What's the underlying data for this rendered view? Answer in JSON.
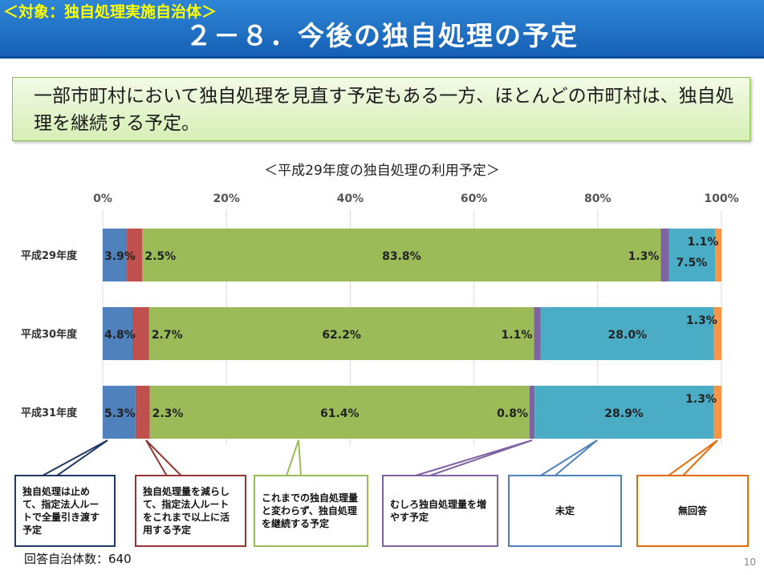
{
  "header": {
    "tag": "＜対象：独自処理実施自治体＞",
    "title": "２－８．今後の独自処理の予定"
  },
  "summary": "一部市町村において独自処理を見直す予定もある一方、ほとんどの市町村は、独自処理を継続する予定。",
  "footer": {
    "respondents": "回答自治体数：640",
    "page_number": "10"
  },
  "colors": {
    "stop": "#4f81bd",
    "reduce": "#c0504d",
    "continue": "#9bbb59",
    "increase": "#8064a2",
    "undecided": "#4bacc6",
    "no_answer": "#f79646"
  },
  "chart_data": {
    "type": "bar",
    "orientation": "horizontal",
    "stacked": true,
    "title": "＜平成29年度の独自処理の利用予定＞",
    "x_ticks": [
      "0%",
      "20%",
      "40%",
      "60%",
      "80%",
      "100%"
    ],
    "xlim": [
      0,
      100
    ],
    "grid": true,
    "categories": [
      "平成29年度",
      "平成30年度",
      "平成31年度"
    ],
    "series": [
      {
        "name": "独自処理は止めて、指定法人ルートで全量引き渡す予定",
        "values": [
          3.9,
          4.8,
          5.3
        ],
        "labels": [
          "3.9%",
          "4.8%",
          "5.3%"
        ]
      },
      {
        "name": "独自処理量を減らして、指定法人ルートをこれまで以上に活用する予定",
        "values": [
          2.5,
          2.7,
          2.3
        ],
        "labels": [
          "2.5%",
          "2.7%",
          "2.3%"
        ]
      },
      {
        "name": "これまでの独自処理量と変わらず、独自処理を継続する予定",
        "values": [
          83.8,
          62.2,
          61.4
        ],
        "labels": [
          "83.8%",
          "62.2%",
          "61.4%"
        ]
      },
      {
        "name": "むしろ独自処理量を増やす予定",
        "values": [
          1.3,
          1.1,
          0.8
        ],
        "labels": [
          "1.3%",
          "1.1%",
          "0.8%"
        ]
      },
      {
        "name": "未定",
        "values": [
          7.5,
          28.0,
          28.9
        ],
        "labels": [
          "7.5%",
          "28.0%",
          "28.9%"
        ]
      },
      {
        "name": "無回答",
        "values": [
          1.1,
          1.3,
          1.3
        ],
        "labels": [
          "1.1%",
          "1.3%",
          "1.3%"
        ]
      }
    ]
  }
}
